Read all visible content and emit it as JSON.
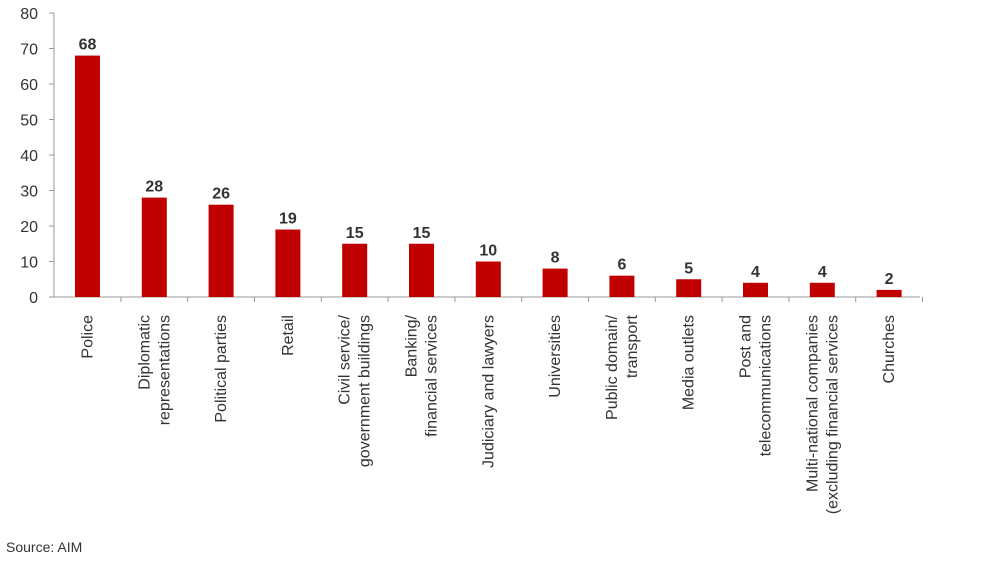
{
  "chart_data": {
    "type": "bar",
    "categories": [
      [
        "Police"
      ],
      [
        "Diplomatic",
        "representations"
      ],
      [
        "Political parties"
      ],
      [
        "Retail"
      ],
      [
        "Civil service/",
        "government buildings"
      ],
      [
        "Banking/",
        "financial services"
      ],
      [
        "Judiciary and lawyers"
      ],
      [
        "Universities"
      ],
      [
        "Public domain/",
        "transport"
      ],
      [
        "Media outlets"
      ],
      [
        "Post and",
        "telecommunications"
      ],
      [
        "Multi-national companies",
        "(excluding financial services"
      ],
      [
        "Churches"
      ]
    ],
    "values": [
      68,
      28,
      26,
      19,
      15,
      15,
      10,
      8,
      6,
      5,
      4,
      4,
      2
    ],
    "data_labels": [
      "68",
      "28",
      "26",
      "19",
      "15",
      "15",
      "10",
      "8",
      "6",
      "5",
      "4",
      "4",
      "2"
    ],
    "yticks": [
      "0",
      "10",
      "20",
      "30",
      "40",
      "50",
      "60",
      "70",
      "80"
    ],
    "ylim": [
      0,
      80
    ],
    "bar_color": "#c00000",
    "axis_color": "#999999",
    "label_color": "#333333",
    "grid": false,
    "legend": "none"
  },
  "source": "Source: AIM"
}
